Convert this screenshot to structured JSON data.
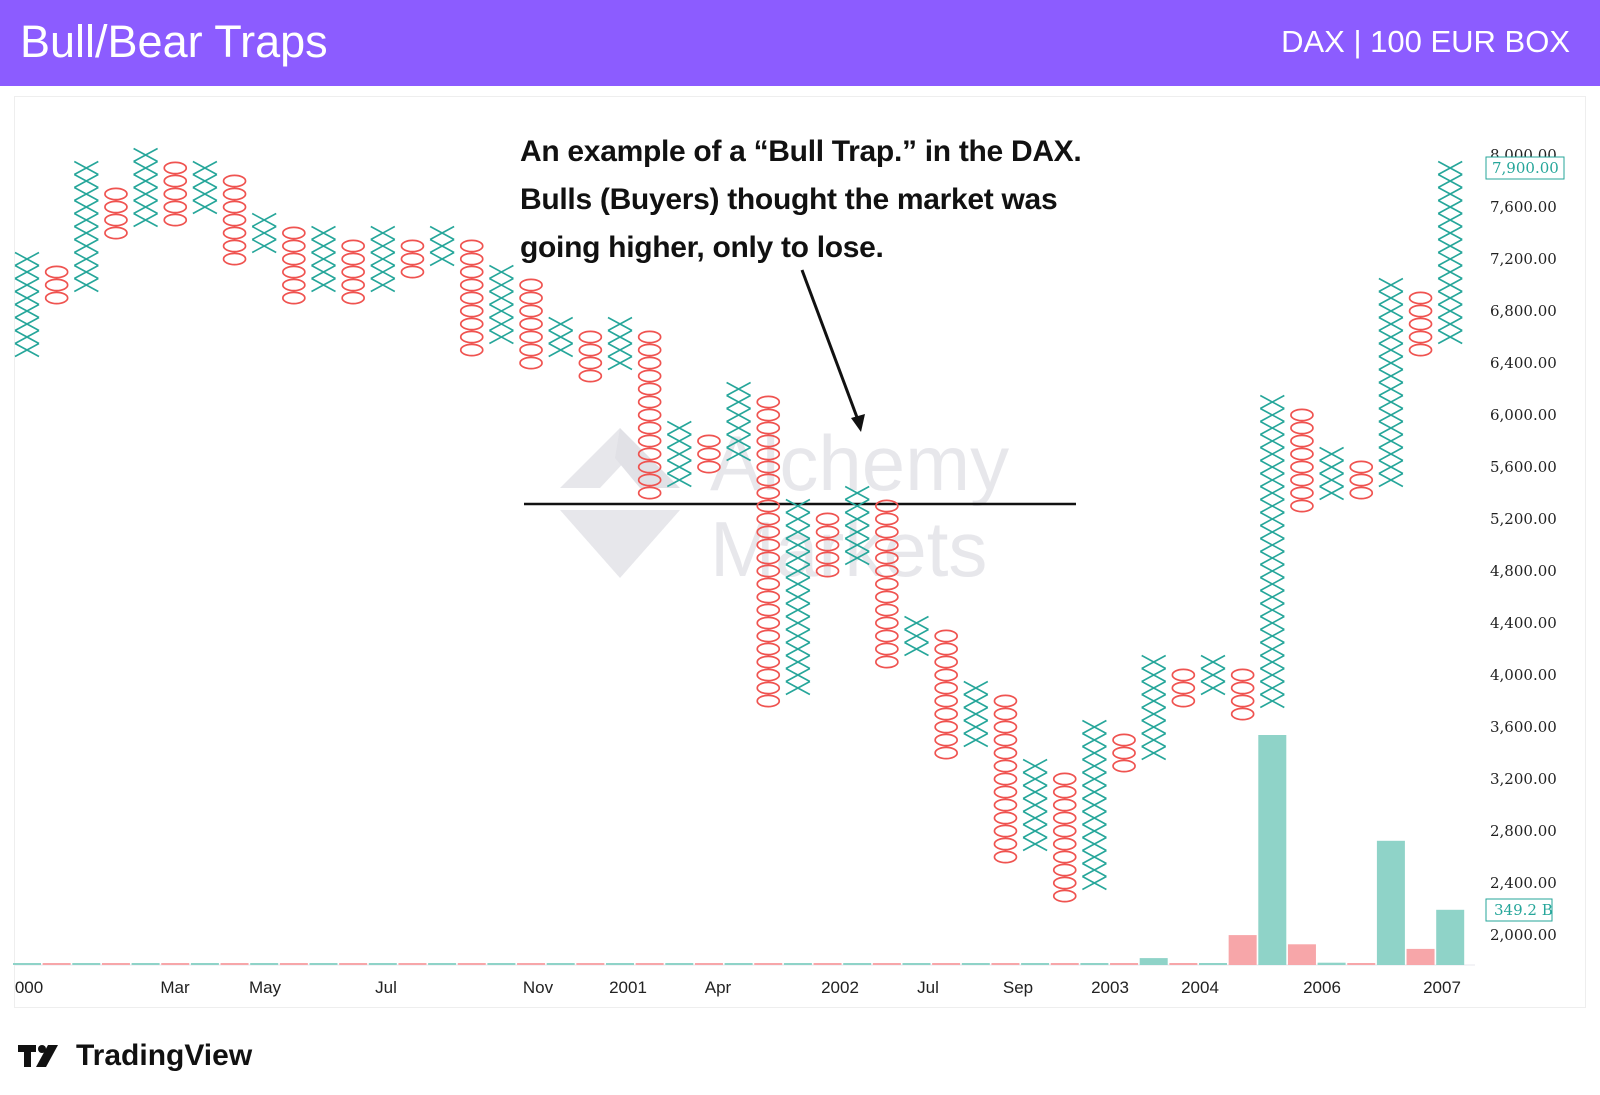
{
  "header": {
    "title": "Bull/Bear Traps",
    "subtitle": "DAX | 100 EUR BOX"
  },
  "annotation": {
    "lines": [
      "An example of a “Bull Trap.” in the DAX.",
      "Bulls (Buyers) thought the market was",
      "going higher, only to lose."
    ]
  },
  "watermark": {
    "line1": "Alchemy",
    "line2": "Markets"
  },
  "footer": {
    "brand": "TradingView"
  },
  "colors": {
    "header_bg": "#8c5cff",
    "x_color": "#26a69a",
    "o_color": "#ef5350",
    "volume_up": "#8fd3c8",
    "volume_down": "#f7a6a9"
  },
  "chart_data": {
    "type": "point-and-figure",
    "box_size": 100,
    "ylim": [
      1700,
      8100
    ],
    "y_ticks": [
      "8,000.00",
      "7,600.00",
      "7,200.00",
      "6,800.00",
      "6,400.00",
      "6,000.00",
      "5,600.00",
      "5,200.00",
      "4,800.00",
      "4,400.00",
      "4,000.00",
      "3,600.00",
      "3,200.00",
      "2,800.00",
      "2,400.00",
      "2,000.00"
    ],
    "x_ticks": [
      "000",
      "Mar",
      "May",
      "Jul",
      "Nov",
      "2001",
      "Apr",
      "2002",
      "Jul",
      "Sep",
      "2003",
      "2004",
      "2006",
      "2007"
    ],
    "last_price_label": "7,900.00",
    "volume_label": "349.2 B",
    "support_line": 5300,
    "columns": [
      {
        "t": "X",
        "lo": 6500,
        "hi": 7200
      },
      {
        "t": "O",
        "lo": 6900,
        "hi": 7100
      },
      {
        "t": "X",
        "lo": 7000,
        "hi": 7900
      },
      {
        "t": "O",
        "lo": 7400,
        "hi": 7700
      },
      {
        "t": "X",
        "lo": 7500,
        "hi": 8000
      },
      {
        "t": "O",
        "lo": 7500,
        "hi": 7900
      },
      {
        "t": "X",
        "lo": 7600,
        "hi": 7900
      },
      {
        "t": "O",
        "lo": 7200,
        "hi": 7800
      },
      {
        "t": "X",
        "lo": 7300,
        "hi": 7500
      },
      {
        "t": "O",
        "lo": 6900,
        "hi": 7400
      },
      {
        "t": "X",
        "lo": 7000,
        "hi": 7400
      },
      {
        "t": "O",
        "lo": 6900,
        "hi": 7300
      },
      {
        "t": "X",
        "lo": 7000,
        "hi": 7400
      },
      {
        "t": "O",
        "lo": 7100,
        "hi": 7300
      },
      {
        "t": "X",
        "lo": 7200,
        "hi": 7400
      },
      {
        "t": "O",
        "lo": 6500,
        "hi": 7300
      },
      {
        "t": "X",
        "lo": 6600,
        "hi": 7100
      },
      {
        "t": "O",
        "lo": 6400,
        "hi": 7000
      },
      {
        "t": "X",
        "lo": 6500,
        "hi": 6700
      },
      {
        "t": "O",
        "lo": 6300,
        "hi": 6600
      },
      {
        "t": "X",
        "lo": 6400,
        "hi": 6700
      },
      {
        "t": "O",
        "lo": 5400,
        "hi": 6600
      },
      {
        "t": "X",
        "lo": 5500,
        "hi": 5900
      },
      {
        "t": "O",
        "lo": 5600,
        "hi": 5800
      },
      {
        "t": "X",
        "lo": 5700,
        "hi": 6200
      },
      {
        "t": "O",
        "lo": 3800,
        "hi": 6100
      },
      {
        "t": "X",
        "lo": 3900,
        "hi": 5300
      },
      {
        "t": "O",
        "lo": 4800,
        "hi": 5200
      },
      {
        "t": "X",
        "lo": 4900,
        "hi": 5400
      },
      {
        "t": "O",
        "lo": 4100,
        "hi": 5300
      },
      {
        "t": "X",
        "lo": 4200,
        "hi": 4400
      },
      {
        "t": "O",
        "lo": 3400,
        "hi": 4300
      },
      {
        "t": "X",
        "lo": 3500,
        "hi": 3900
      },
      {
        "t": "O",
        "lo": 2600,
        "hi": 3800
      },
      {
        "t": "X",
        "lo": 2700,
        "hi": 3300
      },
      {
        "t": "O",
        "lo": 2300,
        "hi": 3200
      },
      {
        "t": "X",
        "lo": 2400,
        "hi": 3600
      },
      {
        "t": "O",
        "lo": 3300,
        "hi": 3500
      },
      {
        "t": "X",
        "lo": 3400,
        "hi": 4100
      },
      {
        "t": "O",
        "lo": 3800,
        "hi": 4000
      },
      {
        "t": "X",
        "lo": 3900,
        "hi": 4100
      },
      {
        "t": "O",
        "lo": 3700,
        "hi": 4000
      },
      {
        "t": "X",
        "lo": 3800,
        "hi": 6100
      },
      {
        "t": "O",
        "lo": 5300,
        "hi": 6000
      },
      {
        "t": "X",
        "lo": 5400,
        "hi": 5700
      },
      {
        "t": "O",
        "lo": 5400,
        "hi": 5600
      },
      {
        "t": "X",
        "lo": 5500,
        "hi": 7000
      },
      {
        "t": "O",
        "lo": 6500,
        "hi": 6900
      },
      {
        "t": "X",
        "lo": 6600,
        "hi": 7900
      }
    ],
    "volume_relative": [
      0,
      0,
      0,
      0,
      0,
      0,
      0,
      0,
      0,
      0,
      0,
      0,
      0,
      0,
      0,
      0,
      0,
      0,
      0,
      0,
      0,
      0,
      0,
      0,
      0,
      0,
      0,
      0,
      0,
      0,
      0,
      0,
      0,
      0,
      0,
      0,
      0,
      0,
      0.03,
      0,
      0,
      0.13,
      1.0,
      0.09,
      0.01,
      0,
      0.54,
      0.07,
      0.24
    ]
  }
}
